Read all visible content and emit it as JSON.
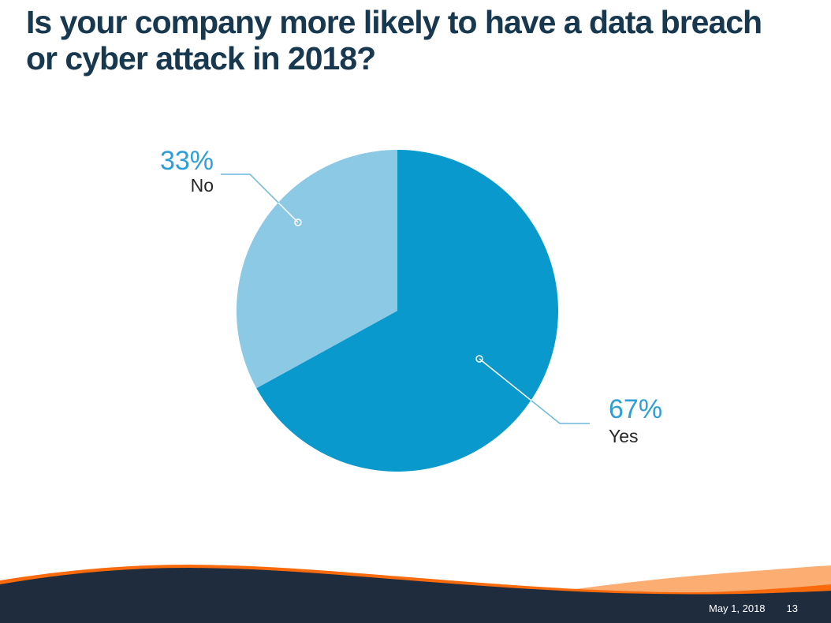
{
  "slide": {
    "title": "Is your company more likely to have a data breach or cyber attack in 2018?",
    "footer": {
      "date": "May 1, 2018",
      "page_number": "13"
    }
  },
  "chart_data": {
    "type": "pie",
    "title": "Is your company more likely to have a data breach or cyber attack in 2018?",
    "slices": [
      {
        "label": "Yes",
        "value": 67,
        "pct_label": "67%",
        "color": "#0999CC"
      },
      {
        "label": "No",
        "value": 33,
        "pct_label": "33%",
        "color": "#8CC9E5"
      }
    ],
    "start_angle_deg": -90,
    "direction": "clockwise",
    "legend": "none",
    "annotations": "callout labels with leader lines and circle markers"
  },
  "colors": {
    "title_text": "#17384F",
    "label_value_text": "#2E9ED7",
    "label_name_text": "#262626",
    "leader_line": "#6CB9E0",
    "leader_line_on_pie": "#FFFFFF",
    "footer_navy": "#1E2C3E",
    "footer_orange": "#F96A0D",
    "footer_peach": "#FBAD72",
    "background": "#FFFFFF"
  }
}
